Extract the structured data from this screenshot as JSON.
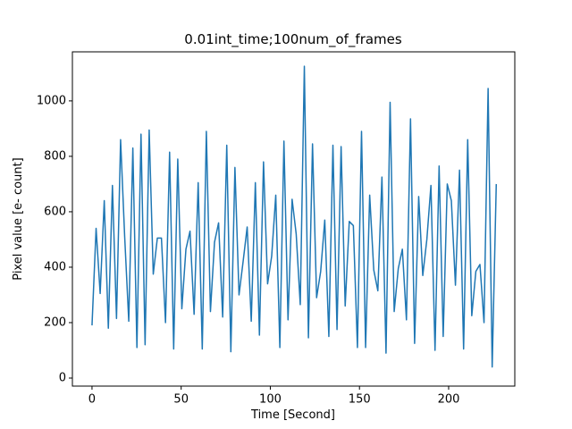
{
  "chart_data": {
    "type": "line",
    "title": "0.01int_time;100num_of_frames",
    "x_label": "Time [Second]",
    "y_label": "Pixel value [e- count]",
    "color": "#1f77b4",
    "x": [
      0,
      2.29,
      4.58,
      6.87,
      9.16,
      11.45,
      13.74,
      16.03,
      18.32,
      20.61,
      22.9,
      25.19,
      27.48,
      29.77,
      32.06,
      34.35,
      36.64,
      38.93,
      41.22,
      43.51,
      45.8,
      48.09,
      50.38,
      52.67,
      54.96,
      57.25,
      59.54,
      61.83,
      64.12,
      66.41,
      68.7,
      70.99,
      73.28,
      75.57,
      77.86,
      80.15,
      82.44,
      84.73,
      87.02,
      89.31,
      91.6,
      93.89,
      96.18,
      98.47,
      100.76,
      103.05,
      105.34,
      107.63,
      109.92,
      112.21,
      114.5,
      116.79,
      119.08,
      121.37,
      123.66,
      125.95,
      128.24,
      130.53,
      132.82,
      135.11,
      137.4,
      139.69,
      141.98,
      144.27,
      146.56,
      148.85,
      151.14,
      153.43,
      155.72,
      158.01,
      160.3,
      162.59,
      164.88,
      167.17,
      169.46,
      171.75,
      174.04,
      176.33,
      178.62,
      180.91,
      183.2,
      185.49,
      187.78,
      190.07,
      192.36,
      194.65,
      196.94,
      199.23,
      201.52,
      203.81,
      206.1,
      208.39,
      210.68,
      212.97,
      215.26,
      217.55,
      219.84,
      222.13,
      224.42,
      226.71
    ],
    "values": [
      190,
      540,
      305,
      640,
      180,
      695,
      215,
      860,
      510,
      205,
      830,
      110,
      880,
      120,
      895,
      375,
      505,
      505,
      200,
      815,
      105,
      790,
      250,
      465,
      530,
      230,
      705,
      105,
      890,
      240,
      490,
      560,
      220,
      840,
      95,
      760,
      300,
      420,
      545,
      205,
      705,
      155,
      780,
      340,
      440,
      660,
      110,
      855,
      210,
      645,
      520,
      265,
      1125,
      145,
      845,
      290,
      385,
      570,
      150,
      840,
      175,
      835,
      260,
      565,
      550,
      110,
      890,
      110,
      660,
      390,
      315,
      725,
      90,
      995,
      240,
      395,
      465,
      210,
      935,
      125,
      655,
      370,
      500,
      695,
      100,
      765,
      150,
      700,
      640,
      335,
      750,
      105,
      860,
      225,
      385,
      410,
      200,
      1045,
      40,
      700
    ],
    "xlim": [
      -11,
      237.1
    ],
    "ylim": [
      -29,
      1177
    ],
    "xticks": [
      0,
      50,
      100,
      150,
      200
    ],
    "yticks": [
      0,
      200,
      400,
      600,
      800,
      1000
    ]
  }
}
